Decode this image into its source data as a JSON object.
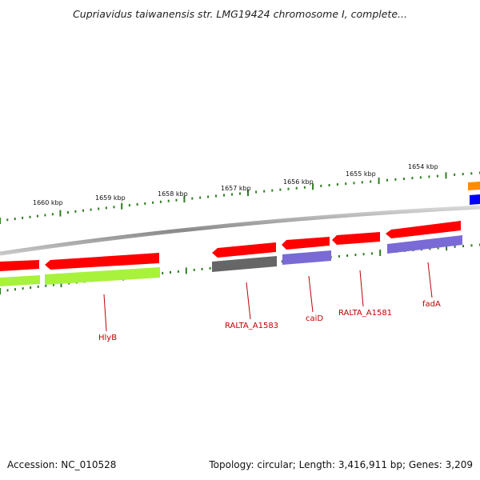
{
  "title": "Cupriavidus taiwanensis str. LMG19424 chromosome I, complete...",
  "footer": {
    "accession": "Accession: NC_010528",
    "stats": "Topology: circular; Length: 3,416,911 bp; Genes: 3,209"
  },
  "ruler_labels": [
    "1660 kbp",
    "1659 kbp",
    "1658 kbp",
    "1657 kbp",
    "1656 kbp",
    "1655 kbp",
    "1654 kbp"
  ],
  "gene_labels": [
    "HlyB",
    "RALTA_A1583",
    "caiD",
    "RALTA_A1581",
    "fadA"
  ],
  "colors": {
    "cds": "#ff0000",
    "gene_green": "#a8f23c",
    "gene_gray": "#666666",
    "gene_purple": "#7a6ad6",
    "gene_orange": "#ff8c00",
    "gene_blue": "#0000ff",
    "tick": "#2e7d1e",
    "label": "#c00000"
  }
}
